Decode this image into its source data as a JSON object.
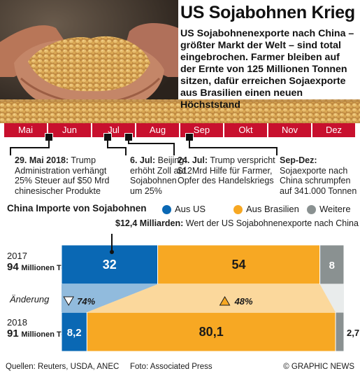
{
  "header": {
    "title": "US Sojabohnen Krieg",
    "intro": "US Sojabohnenexporte nach China – größter Markt der Welt – sind total eingebrochen. Farmer bleiben auf der Ernte von 125 Millionen Tonnen sitzen, dafür erreichen Sojaexporte aus Brasilien einen neuen Höchststand"
  },
  "timeline": {
    "months": [
      "Mai",
      "Jun",
      "Jul",
      "Aug",
      "Sep",
      "Okt",
      "Nov",
      "Dez"
    ],
    "events": [
      {
        "date": "29. Mai 2018:",
        "text": "Trump Administration verhängt 25% Steuer auf $50 Mrd chinesischer Produkte"
      },
      {
        "date": "6. Jul:",
        "text": "Beijing erhöht Zoll auf Sojabohnen um 25%"
      },
      {
        "date": "24. Jul:",
        "text": "Trump verspricht $12Mrd Hilfe für Farmer, Opfer des Handelskriegs"
      },
      {
        "date": "Sep-Dez:",
        "text": "Sojaexporte nach China schrumpfen auf 341.000 Tonnen"
      }
    ]
  },
  "chart_data": {
    "type": "bar",
    "title": "China Importe von Sojabohnen",
    "stacked": true,
    "orientation": "horizontal",
    "categories": [
      "2017",
      "2018"
    ],
    "category_totals": [
      "94",
      "91"
    ],
    "total_unit": "Millionen Tonnen",
    "series": [
      {
        "name": "Aus US",
        "values": [
          32,
          8.2
        ],
        "labels": [
          "32",
          "8,2"
        ],
        "color": "#0a68b4"
      },
      {
        "name": "Aus Brasilien",
        "values": [
          54,
          80.1
        ],
        "labels": [
          "54",
          "80,1"
        ],
        "color": "#f7a823"
      },
      {
        "name": "Weitere",
        "values": [
          8,
          2.7
        ],
        "labels": [
          "8",
          "2,7"
        ],
        "color": "#8a9191"
      }
    ],
    "change": {
      "label": "Änderung",
      "values": [
        {
          "series": "Aus US",
          "value": "74%",
          "direction": "down"
        },
        {
          "series": "Aus Brasilien",
          "value": "48%",
          "direction": "up"
        }
      ]
    },
    "annotation": {
      "bold": "$12,4 Milliarden:",
      "text": "Wert der US Sojabohnenexporte nach China"
    }
  },
  "footer": {
    "sources": "Quellen: Reuters, USDA, ANEC",
    "photo": "Foto: Associated Press",
    "credit": "© GRAPHIC NEWS"
  }
}
